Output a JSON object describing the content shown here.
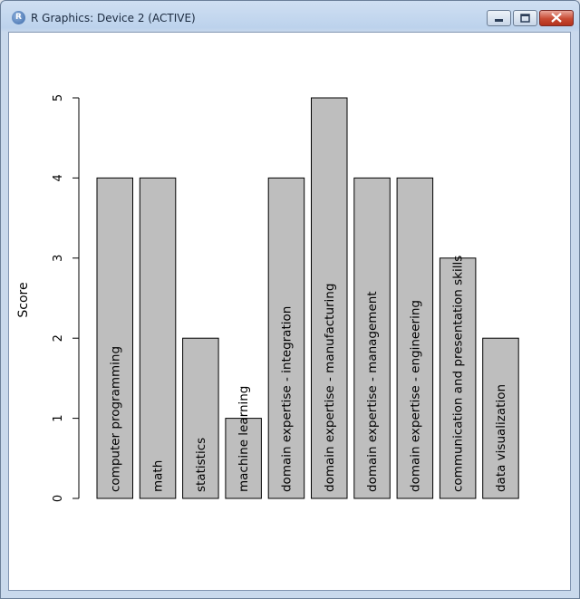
{
  "window": {
    "title": "R Graphics: Device 2 (ACTIVE)",
    "icon_letter": "R",
    "controls": [
      "minimize-icon",
      "maximize-icon",
      "close-icon"
    ]
  },
  "colors": {
    "bar_fill": "#bebebe",
    "bar_stroke": "#000000",
    "close_button": "#c84a33"
  },
  "chart_data": {
    "type": "bar",
    "title": "",
    "xlabel": "",
    "ylabel": "Score",
    "ylim": [
      0,
      5
    ],
    "yticks": [
      0,
      1,
      2,
      3,
      4,
      5
    ],
    "categories": [
      "computer programming",
      "math",
      "statistics",
      "machine learning",
      "domain expertise - integration",
      "domain expertise - manufacturing",
      "domain expertise - management",
      "domain expertise - engineering",
      "communication and presentation skills",
      "data visualization"
    ],
    "values": [
      4,
      4,
      2,
      1,
      4,
      5,
      4,
      4,
      3,
      2
    ],
    "bar_labels_inside": true,
    "grid": false
  }
}
